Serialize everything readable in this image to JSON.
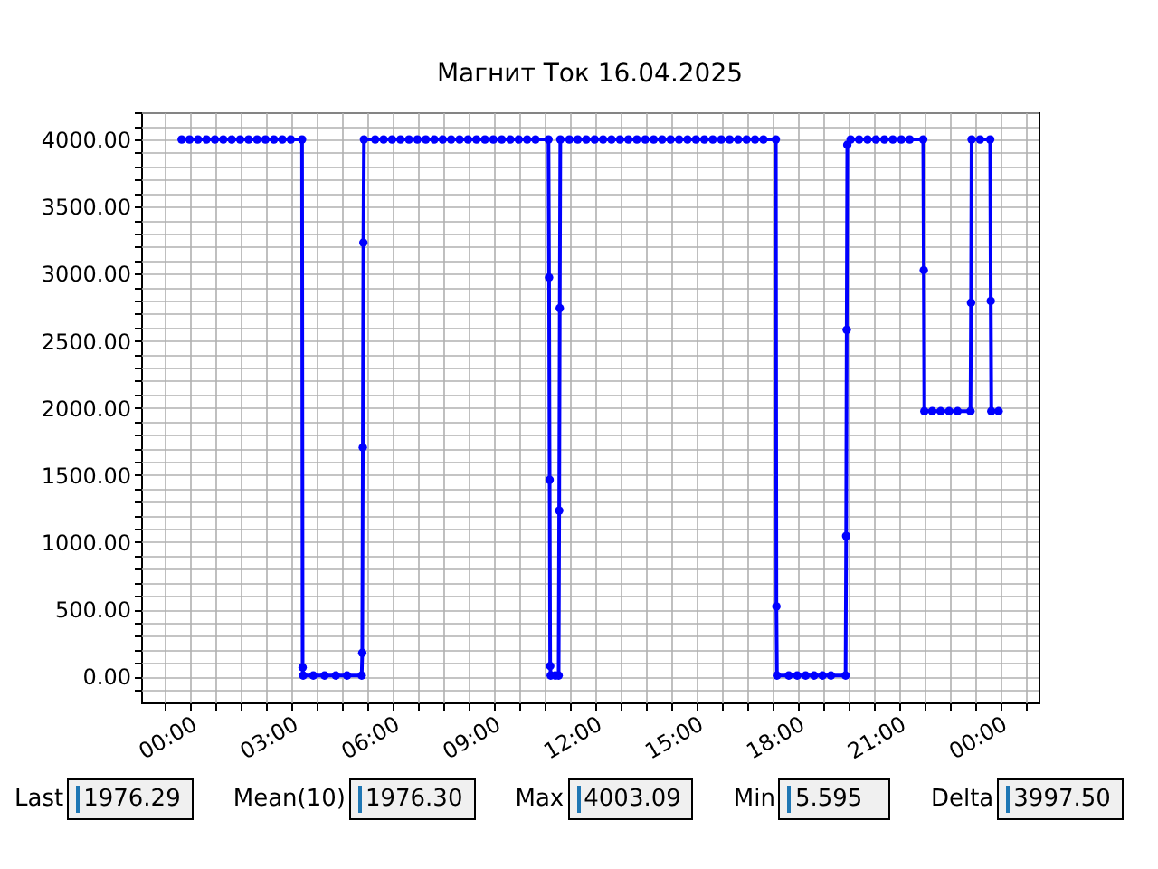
{
  "chart_data": {
    "type": "line",
    "title": "Магнит Ток 16.04.2025",
    "x": [
      "2025-04-15T23:46",
      "2025-04-16T00:00",
      "2025-04-16T00:15",
      "2025-04-16T00:30",
      "2025-04-16T00:45",
      "2025-04-16T01:00",
      "2025-04-16T01:15",
      "2025-04-16T01:30",
      "2025-04-16T01:45",
      "2025-04-16T02:00",
      "2025-04-16T02:15",
      "2025-04-16T02:30",
      "2025-04-16T02:45",
      "2025-04-16T03:00",
      "2025-04-16T03:20",
      "2025-04-16T03:21",
      "2025-04-16T03:22",
      "2025-04-16T03:40",
      "2025-04-16T04:00",
      "2025-04-16T04:20",
      "2025-04-16T04:40",
      "2025-04-16T05:06",
      "2025-04-16T05:07",
      "2025-04-16T05:08",
      "2025-04-16T05:09",
      "2025-04-16T05:10",
      "2025-04-16T05:30",
      "2025-04-16T05:45",
      "2025-04-16T06:00",
      "2025-04-16T06:15",
      "2025-04-16T06:30",
      "2025-04-16T06:45",
      "2025-04-16T07:00",
      "2025-04-16T07:15",
      "2025-04-16T07:30",
      "2025-04-16T07:45",
      "2025-04-16T08:00",
      "2025-04-16T08:15",
      "2025-04-16T08:30",
      "2025-04-16T08:45",
      "2025-04-16T09:00",
      "2025-04-16T09:15",
      "2025-04-16T09:30",
      "2025-04-16T09:45",
      "2025-04-16T10:00",
      "2025-04-16T10:15",
      "2025-04-16T10:38",
      "2025-04-16T10:39",
      "2025-04-16T10:40",
      "2025-04-16T10:41",
      "2025-04-16T10:42",
      "2025-04-16T10:50",
      "2025-04-16T10:56",
      "2025-04-16T10:57",
      "2025-04-16T10:58",
      "2025-04-16T10:59",
      "2025-04-16T11:15",
      "2025-04-16T11:30",
      "2025-04-16T11:45",
      "2025-04-16T12:00",
      "2025-04-16T12:15",
      "2025-04-16T12:30",
      "2025-04-16T12:45",
      "2025-04-16T13:00",
      "2025-04-16T13:15",
      "2025-04-16T13:30",
      "2025-04-16T13:45",
      "2025-04-16T14:00",
      "2025-04-16T14:15",
      "2025-04-16T14:30",
      "2025-04-16T14:45",
      "2025-04-16T15:00",
      "2025-04-16T15:15",
      "2025-04-16T15:30",
      "2025-04-16T15:45",
      "2025-04-16T16:00",
      "2025-04-16T16:15",
      "2025-04-16T16:30",
      "2025-04-16T16:45",
      "2025-04-16T17:00",
      "2025-04-16T17:22",
      "2025-04-16T17:23",
      "2025-04-16T17:24",
      "2025-04-16T17:45",
      "2025-04-16T18:00",
      "2025-04-16T18:15",
      "2025-04-16T18:30",
      "2025-04-16T18:45",
      "2025-04-16T19:00",
      "2025-04-16T19:26",
      "2025-04-16T19:27",
      "2025-04-16T19:28",
      "2025-04-16T19:29",
      "2025-04-16T19:35",
      "2025-04-16T19:50",
      "2025-04-16T20:05",
      "2025-04-16T20:20",
      "2025-04-16T20:35",
      "2025-04-16T20:50",
      "2025-04-16T21:05",
      "2025-04-16T21:20",
      "2025-04-16T21:44",
      "2025-04-16T21:45",
      "2025-04-16T21:46",
      "2025-04-16T22:00",
      "2025-04-16T22:15",
      "2025-04-16T22:30",
      "2025-04-16T22:45",
      "2025-04-16T23:08",
      "2025-04-16T23:09",
      "2025-04-16T23:10",
      "2025-04-16T23:25",
      "2025-04-16T23:43",
      "2025-04-16T23:44",
      "2025-04-16T23:45",
      "2025-04-16T23:58"
    ],
    "series": [
      {
        "color": "#0000ff",
        "values": [
          4000,
          4000,
          4000,
          4000,
          4000,
          4000,
          4000,
          4000,
          4000,
          4000,
          4000,
          4000,
          4000,
          4000,
          4000,
          67,
          6,
          6,
          6,
          6,
          6,
          6,
          175,
          1706,
          3232,
          4000,
          4000,
          4000,
          4000,
          4000,
          4000,
          4000,
          4000,
          4000,
          4000,
          4000,
          4000,
          4000,
          4000,
          4000,
          4000,
          4000,
          4000,
          4000,
          4000,
          4000,
          4000,
          2972,
          1464,
          77,
          6,
          6,
          6,
          1235,
          2743,
          4000,
          4000,
          4000,
          4000,
          4000,
          4000,
          4000,
          4000,
          4000,
          4000,
          4000,
          4000,
          4000,
          4000,
          4000,
          4000,
          4000,
          4000,
          4000,
          4000,
          4000,
          4000,
          4000,
          4000,
          4000,
          4000,
          521,
          6,
          6,
          6,
          6,
          6,
          6,
          6,
          6,
          1046,
          2582,
          3960,
          4000,
          4000,
          4000,
          4000,
          4000,
          4000,
          4000,
          4000,
          4000,
          3026,
          1976,
          1976,
          1976,
          1976,
          1976,
          1976,
          2784,
          4000,
          4000,
          4000,
          2797,
          1976,
          1976
        ]
      }
    ],
    "xlim": [
      "2025-04-15T22:34",
      "2025-04-17T01:09"
    ],
    "xticks": [
      {
        "value": "2025-04-16T00:00",
        "label": "00:00"
      },
      {
        "value": "2025-04-16T03:00",
        "label": "03:00"
      },
      {
        "value": "2025-04-16T06:00",
        "label": "06:00"
      },
      {
        "value": "2025-04-16T09:00",
        "label": "09:00"
      },
      {
        "value": "2025-04-16T12:00",
        "label": "12:00"
      },
      {
        "value": "2025-04-16T15:00",
        "label": "15:00"
      },
      {
        "value": "2025-04-16T18:00",
        "label": "18:00"
      },
      {
        "value": "2025-04-16T21:00",
        "label": "21:00"
      },
      {
        "value": "2025-04-17T00:00",
        "label": "00:00"
      }
    ],
    "ylim": [
      -194.3,
      4203.0
    ],
    "yticks": [
      {
        "value": 0,
        "label": "0.00"
      },
      {
        "value": 500,
        "label": "500.00"
      },
      {
        "value": 1000,
        "label": "1000.00"
      },
      {
        "value": 1500,
        "label": "1500.00"
      },
      {
        "value": 2000,
        "label": "2000.00"
      },
      {
        "value": 2500,
        "label": "2500.00"
      },
      {
        "value": 3000,
        "label": "3000.00"
      },
      {
        "value": 3500,
        "label": "3500.00"
      },
      {
        "value": 4000,
        "label": "4000.00"
      }
    ],
    "grid": true,
    "marker": "circle",
    "line_style": "solid",
    "annotations": [
      "Last",
      "1976.29",
      "Mean(10)",
      "1976.30",
      "Max",
      "4003.09",
      "Min",
      "5.595",
      "Delta",
      "3997.50"
    ]
  }
}
